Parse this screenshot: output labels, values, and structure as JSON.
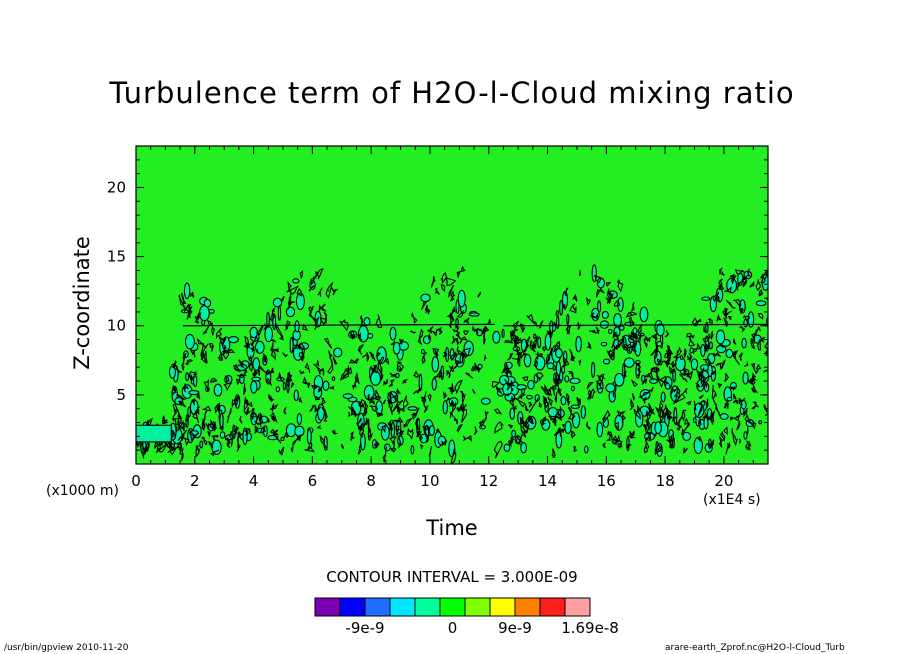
{
  "chart_data": {
    "type": "contour",
    "title": "Turbulence term of H2O-l-Cloud mixing ratio",
    "xlabel": "Time",
    "ylabel": "Z-coordinate",
    "x_unit": "(x1E4 s)",
    "y_unit": "(x1000 m)",
    "xlim": [
      0,
      21.5
    ],
    "ylim": [
      0,
      23
    ],
    "x_ticks": [
      "0",
      "2",
      "4",
      "6",
      "8",
      "10",
      "12",
      "14",
      "16",
      "18",
      "20"
    ],
    "y_ticks": [
      "5",
      "10",
      "15",
      "20"
    ],
    "contour_interval": "CONTOUR INTERVAL = 3.000E-09",
    "colorbar": {
      "colors": [
        "#7b00b4",
        "#0000ff",
        "#1e6eff",
        "#00e6ff",
        "#00ff9a",
        "#00ff00",
        "#7fff00",
        "#ffff00",
        "#ff8000",
        "#ff1e1e",
        "#ffa0a0"
      ],
      "labels": [
        "-9e-9",
        "0",
        "9e-9",
        "1.69e-8"
      ]
    },
    "background_color": "#22ee22",
    "activity_band_z": [
      1,
      14
    ]
  },
  "footer": {
    "left": "/usr/bin/gpview   2010-11-20",
    "right": "arare-earth_Zprof.nc@H2O-l-Cloud_Turb"
  }
}
